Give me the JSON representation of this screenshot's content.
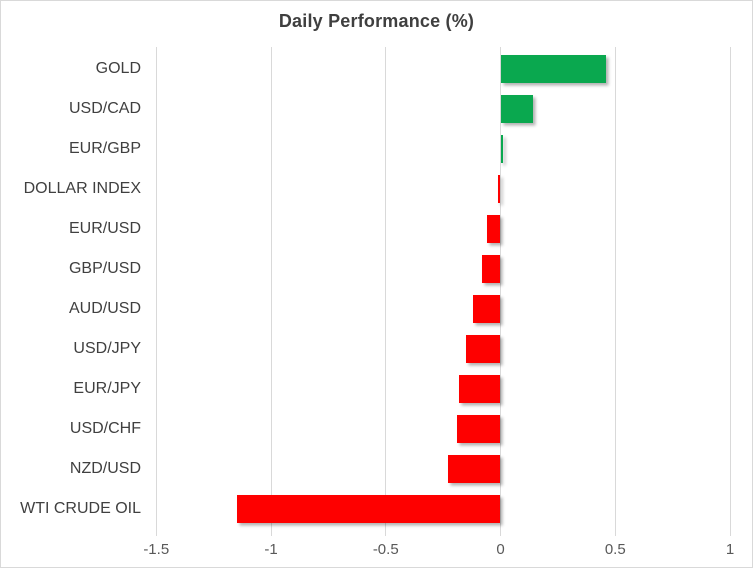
{
  "chart_data": {
    "type": "bar",
    "orientation": "horizontal",
    "title": "Daily Performance (%)",
    "categories": [
      "GOLD",
      "USD/CAD",
      "EUR/GBP",
      "DOLLAR INDEX",
      "EUR/USD",
      "GBP/USD",
      "AUD/USD",
      "USD/JPY",
      "EUR/JPY",
      "USD/CHF",
      "NZD/USD",
      "WTI CRUDE OIL"
    ],
    "values": [
      0.46,
      0.14,
      0.01,
      -0.01,
      -0.06,
      -0.08,
      -0.12,
      -0.15,
      -0.18,
      -0.19,
      -0.23,
      -1.15
    ],
    "xlabel": "",
    "ylabel": "",
    "xlim": [
      -1.52,
      1.08
    ],
    "x_ticks": [
      -1.5,
      -1,
      -0.5,
      0,
      0.5,
      1
    ],
    "x_tick_labels": [
      "-1.5",
      "-1",
      "-0.5",
      "0",
      "0.5",
      "1"
    ],
    "grid": true,
    "legend": false,
    "colors": {
      "positive_bar": "#0aa84f",
      "negative_bar": "#fe0000",
      "gridline": "#d9d9d9",
      "title_text": "#3f3f3f",
      "category_text": "#404040",
      "tick_text": "#595959",
      "border": "#d9d9d9",
      "background": "#ffffff"
    }
  }
}
